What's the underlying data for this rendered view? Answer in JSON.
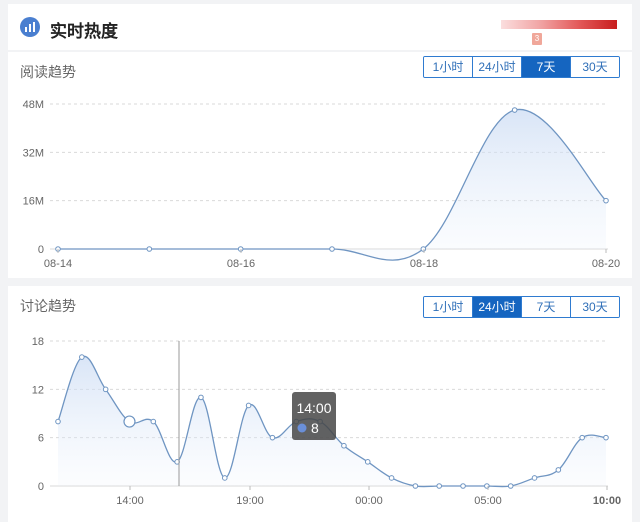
{
  "header": {
    "title": "实时热度",
    "icon": "chart-icon",
    "heat_marker": "3"
  },
  "reading": {
    "title": "阅读趋势",
    "tabs": [
      {
        "label": "1小时",
        "active": false
      },
      {
        "label": "24小时",
        "active": false
      },
      {
        "label": "7天",
        "active": true
      },
      {
        "label": "30天",
        "active": false
      }
    ]
  },
  "discussion": {
    "title": "讨论趋势",
    "tabs": [
      {
        "label": "1小时",
        "active": false
      },
      {
        "label": "24小时",
        "active": true
      },
      {
        "label": "7天",
        "active": false
      },
      {
        "label": "30天",
        "active": false
      }
    ],
    "tooltip": {
      "time": "14:00",
      "value": "8"
    }
  },
  "chart_data": [
    {
      "type": "area",
      "x_ticks": [
        "08-14",
        "08-16",
        "08-18",
        "08-20"
      ],
      "y_ticks": [
        "0",
        "16M",
        "32M",
        "48M"
      ],
      "ylim": [
        0,
        48
      ],
      "y_unit": "M",
      "points": [
        0,
        0,
        0,
        0,
        0,
        46,
        16
      ],
      "line_color": "#6f95c2"
    },
    {
      "type": "area",
      "x_ticks": [
        "14:00",
        "19:00",
        "00:00",
        "05:00",
        "10:00"
      ],
      "y_ticks": [
        "0",
        "6",
        "12",
        "18"
      ],
      "ylim": [
        0,
        18
      ],
      "points": [
        8,
        16,
        12,
        8,
        8,
        3,
        11,
        1,
        10,
        6,
        8,
        8,
        5,
        3,
        1,
        0,
        0,
        0,
        0,
        0,
        1,
        2,
        6,
        6
      ],
      "line_color": "#6f95c2"
    }
  ]
}
